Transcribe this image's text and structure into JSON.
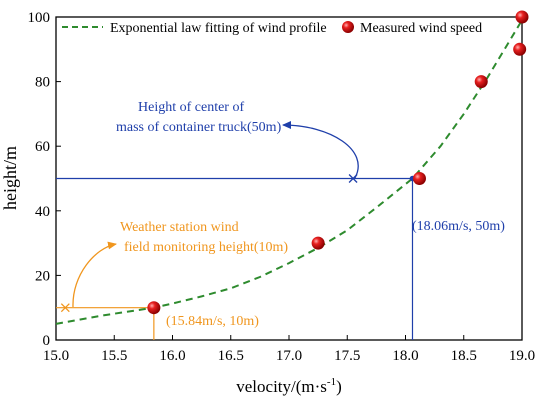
{
  "chart_data": {
    "type": "scatter",
    "title": "",
    "xlabel": "velocity/(m·s",
    "xlabel_sup": "-1",
    "xlabel_tail": ")",
    "ylabel": "height/m",
    "xlim": [
      15.0,
      19.0
    ],
    "ylim": [
      0,
      100
    ],
    "x_ticks": [
      15.0,
      15.5,
      16.0,
      16.5,
      17.0,
      17.5,
      18.0,
      18.5,
      19.0
    ],
    "x_tick_labels": [
      "15.0",
      "15.5",
      "16.0",
      "16.5",
      "17.0",
      "17.5",
      "18.0",
      "18.5",
      "19.0"
    ],
    "y_ticks": [
      0,
      20,
      40,
      60,
      80,
      100
    ],
    "y_tick_labels": [
      "0",
      "20",
      "40",
      "60",
      "80",
      "100"
    ],
    "grid": false,
    "legend_position": "top",
    "legend": {
      "fit_label": "Exponential law fitting of wind profile",
      "measured_label": "Measured wind speed"
    },
    "series": [
      {
        "name": "Measured wind speed",
        "kind": "scatter",
        "color": "#d62020",
        "points": [
          {
            "x": 15.84,
            "y": 10
          },
          {
            "x": 17.25,
            "y": 30
          },
          {
            "x": 18.12,
            "y": 50
          },
          {
            "x": 18.65,
            "y": 80
          },
          {
            "x": 18.98,
            "y": 90
          },
          {
            "x": 19.0,
            "y": 100
          }
        ]
      },
      {
        "name": "Exponential law fitting of wind profile",
        "kind": "line",
        "style": "dashed",
        "color": "#2e8b2e",
        "points": [
          {
            "x": 15.0,
            "y": 5
          },
          {
            "x": 15.2,
            "y": 6.3
          },
          {
            "x": 15.4,
            "y": 7.6
          },
          {
            "x": 15.6,
            "y": 8.7
          },
          {
            "x": 15.84,
            "y": 10
          },
          {
            "x": 16.0,
            "y": 11.3
          },
          {
            "x": 16.25,
            "y": 13.5
          },
          {
            "x": 16.5,
            "y": 16
          },
          {
            "x": 16.75,
            "y": 19.5
          },
          {
            "x": 17.0,
            "y": 23.8
          },
          {
            "x": 17.25,
            "y": 28.5
          },
          {
            "x": 17.5,
            "y": 34
          },
          {
            "x": 17.75,
            "y": 41
          },
          {
            "x": 18.06,
            "y": 50
          },
          {
            "x": 18.3,
            "y": 60
          },
          {
            "x": 18.5,
            "y": 70
          },
          {
            "x": 18.7,
            "y": 81
          },
          {
            "x": 18.85,
            "y": 90
          },
          {
            "x": 19.0,
            "y": 99
          }
        ]
      }
    ],
    "annotations": [
      {
        "id": "truck",
        "color": "#1f3faa",
        "lines": [
          "Height of center of",
          "mass of container truck(50m)"
        ],
        "point_label": "(18.06m/s, 50m)",
        "point": {
          "x": 18.06,
          "y": 50
        },
        "marker": {
          "x": 17.55,
          "y": 50
        }
      },
      {
        "id": "station",
        "color": "#f0961e",
        "lines": [
          "Weather station wind",
          "field monitoring height(10m)"
        ],
        "point_label": "(15.84m/s, 10m)",
        "point": {
          "x": 15.84,
          "y": 10
        },
        "marker": {
          "x": 15.08,
          "y": 10
        }
      }
    ]
  }
}
